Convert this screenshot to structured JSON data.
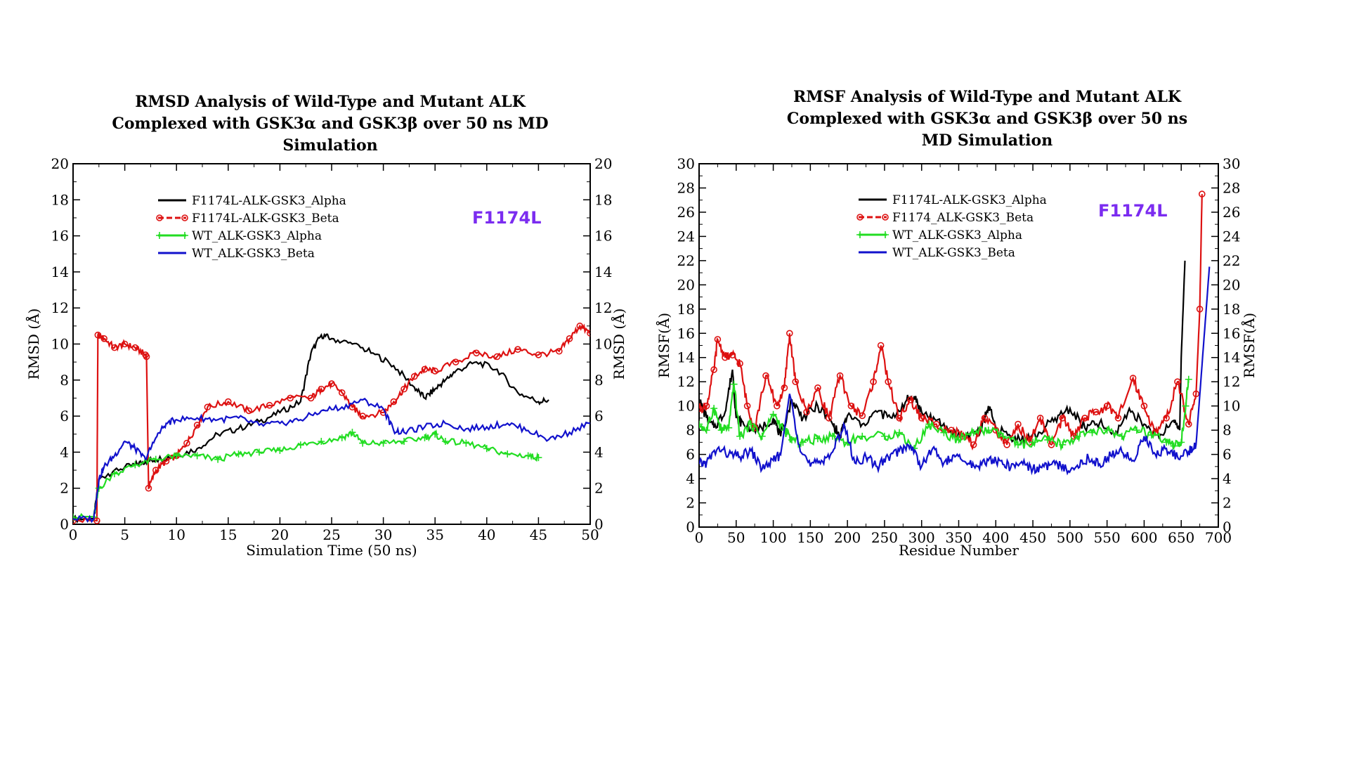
{
  "chart_data": [
    {
      "id": "rmsd",
      "type": "line",
      "title": "RMSD Analysis of Wild-Type and Mutant ALK Complexed with GSK3α and GSK3β over 50 ns MD Simulation",
      "title_lines": [
        "RMSD Analysis of Wild-Type and Mutant ALK",
        "Complexed with GSK3α and GSK3β over 50 ns MD",
        "Simulation"
      ],
      "xlabel": "Simulation Time (50 ns)",
      "ylabel": "RMSD (Å)",
      "ylabel_right": "RMSD (Å)",
      "xlim": [
        0,
        50
      ],
      "ylim": [
        0,
        20
      ],
      "xticks": [
        0,
        5,
        10,
        15,
        20,
        25,
        30,
        35,
        40,
        45,
        50
      ],
      "yticks": [
        0,
        2,
        4,
        6,
        8,
        10,
        12,
        14,
        16,
        18,
        20
      ],
      "grid": false,
      "legend_position": "top-left",
      "annotation": "F1174L",
      "annotation_color": "#7b2cf0",
      "series": [
        {
          "name": "F1174L-ALK-GSK3_Alpha",
          "color": "#000000",
          "marker": "none",
          "x": [
            0,
            2,
            2.5,
            4,
            6,
            7,
            8,
            10,
            12,
            14,
            16,
            18,
            20,
            22,
            23,
            24,
            25,
            27,
            29,
            31,
            33,
            34,
            35,
            36,
            37,
            39,
            41,
            43,
            45,
            46
          ],
          "y": [
            0.3,
            0.3,
            2.5,
            3.0,
            3.3,
            3.5,
            3.6,
            3.8,
            4.2,
            5.0,
            5.3,
            5.7,
            6.2,
            6.8,
            9.5,
            10.5,
            10.3,
            10.0,
            9.5,
            8.8,
            7.6,
            7.0,
            7.5,
            8.0,
            8.5,
            9.0,
            8.6,
            7.3,
            6.8,
            6.9
          ]
        },
        {
          "name": "F1174L-ALK-GSK3_Beta",
          "color": "#dd1111",
          "marker": "circle",
          "x": [
            0,
            2.3,
            2.4,
            3,
            4,
            5,
            6,
            7,
            7.1,
            7.3,
            8,
            9,
            10,
            11,
            12,
            13,
            15,
            17,
            19,
            21,
            23,
            24,
            25,
            26,
            27,
            28,
            30,
            31,
            32,
            33,
            34,
            35,
            37,
            39,
            41,
            43,
            45,
            47,
            48,
            49,
            50
          ],
          "y": [
            0.2,
            0.2,
            10.5,
            10.3,
            9.8,
            10.0,
            9.8,
            9.4,
            9.3,
            2.0,
            3.0,
            3.5,
            3.8,
            4.5,
            5.5,
            6.5,
            6.8,
            6.3,
            6.6,
            7.0,
            7.0,
            7.5,
            7.8,
            7.3,
            6.5,
            6.0,
            6.2,
            6.8,
            7.5,
            8.2,
            8.6,
            8.5,
            9.0,
            9.5,
            9.3,
            9.7,
            9.4,
            9.6,
            10.3,
            11.0,
            10.6
          ]
        },
        {
          "name": "WT_ALK-GSK3_Alpha",
          "color": "#22dd22",
          "marker": "plus",
          "x": [
            0,
            2,
            2.5,
            4,
            6,
            8,
            10,
            12,
            14,
            16,
            18,
            20,
            22,
            24,
            26,
            27,
            28,
            30,
            32,
            34,
            35,
            36,
            38,
            40,
            42,
            44,
            45
          ],
          "y": [
            0.4,
            0.4,
            2.0,
            2.8,
            3.3,
            3.6,
            3.8,
            3.8,
            3.6,
            3.9,
            4.0,
            4.1,
            4.4,
            4.6,
            4.8,
            5.1,
            4.5,
            4.5,
            4.6,
            4.8,
            5.0,
            4.6,
            4.5,
            4.2,
            3.9,
            3.8,
            3.7
          ]
        },
        {
          "name": "WT_ALK-GSK3_Beta",
          "color": "#1111cc",
          "marker": "none",
          "x": [
            0,
            2,
            2.5,
            3,
            4,
            5,
            6,
            7,
            8,
            9,
            10,
            12,
            14,
            16,
            18,
            20,
            22,
            24,
            26,
            28,
            30,
            31,
            32,
            34,
            36,
            38,
            40,
            42,
            44,
            46,
            48,
            50
          ],
          "y": [
            0.3,
            0.3,
            2.5,
            3.2,
            3.8,
            4.6,
            4.2,
            3.6,
            4.8,
            5.6,
            5.8,
            5.9,
            5.8,
            5.9,
            5.5,
            5.6,
            5.8,
            6.3,
            6.5,
            6.9,
            6.4,
            5.2,
            5.1,
            5.4,
            5.6,
            5.3,
            5.4,
            5.6,
            5.2,
            4.7,
            5.1,
            5.6
          ]
        }
      ]
    },
    {
      "id": "rmsf",
      "type": "line",
      "title": "RMSF Analysis of Wild-Type and Mutant ALK Complexed with GSK3α and GSK3β over 50 ns MD Simulation",
      "title_lines": [
        "RMSF Analysis of Wild-Type and  Mutant ALK",
        "Complexed with GSK3α and GSK3β over 50 ns",
        "MD Simulation"
      ],
      "xlabel": "Residue Number",
      "ylabel": "RMSF(Å)",
      "ylabel_right": "RMSF(Å)",
      "xlim": [
        0,
        700
      ],
      "ylim": [
        0,
        30
      ],
      "xticks": [
        0,
        50,
        100,
        150,
        200,
        250,
        300,
        350,
        400,
        450,
        500,
        550,
        600,
        650,
        700
      ],
      "yticks": [
        0,
        2,
        4,
        6,
        8,
        10,
        12,
        14,
        16,
        18,
        20,
        22,
        24,
        26,
        28,
        30
      ],
      "grid": false,
      "legend_position": "top-left",
      "annotation": "F1174L",
      "annotation_color": "#7b2cf0",
      "series": [
        {
          "name": "F1174L-ALK-GSK3_Alpha",
          "color": "#000000",
          "marker": "none",
          "x": [
            0,
            10,
            20,
            35,
            45,
            50,
            60,
            80,
            100,
            110,
            125,
            140,
            160,
            180,
            190,
            200,
            220,
            240,
            260,
            280,
            290,
            300,
            320,
            340,
            360,
            380,
            390,
            400,
            420,
            440,
            460,
            480,
            500,
            520,
            540,
            560,
            580,
            600,
            620,
            640,
            648,
            650,
            655
          ],
          "y": [
            10.5,
            9.0,
            8.2,
            9.5,
            13.0,
            9.0,
            8.5,
            8.0,
            9.0,
            7.5,
            10.5,
            9.0,
            10.0,
            8.5,
            7.5,
            9.2,
            8.5,
            9.5,
            9.0,
            10.5,
            10.8,
            9.5,
            8.8,
            7.8,
            7.5,
            8.0,
            10.0,
            8.2,
            7.5,
            7.2,
            7.8,
            9.0,
            9.8,
            8.2,
            8.6,
            7.5,
            9.8,
            8.5,
            7.4,
            8.8,
            8.0,
            14.0,
            22.0
          ]
        },
        {
          "name": "F1174_ALK-GSK3_Beta",
          "color": "#dd1111",
          "marker": "circle",
          "x": [
            0,
            10,
            20,
            25,
            35,
            45,
            55,
            65,
            75,
            90,
            105,
            115,
            122,
            130,
            145,
            160,
            175,
            190,
            205,
            220,
            235,
            245,
            255,
            270,
            285,
            300,
            320,
            340,
            355,
            370,
            385,
            400,
            415,
            430,
            445,
            460,
            475,
            490,
            505,
            520,
            535,
            550,
            565,
            585,
            600,
            615,
            630,
            645,
            660,
            670,
            675,
            678
          ],
          "y": [
            9.8,
            10.0,
            13.0,
            15.5,
            14.0,
            14.2,
            13.5,
            10.0,
            8.2,
            12.5,
            10.0,
            11.5,
            16.0,
            12.0,
            9.5,
            11.5,
            9.0,
            12.5,
            10.0,
            9.2,
            12.0,
            15.0,
            12.0,
            9.0,
            10.5,
            9.0,
            8.5,
            8.0,
            7.5,
            6.8,
            9.0,
            8.0,
            6.8,
            8.5,
            7.0,
            9.0,
            6.8,
            9.0,
            7.5,
            9.0,
            9.5,
            10.0,
            9.0,
            12.3,
            10.0,
            7.8,
            9.0,
            12.0,
            8.5,
            11.0,
            18.0,
            27.5
          ]
        },
        {
          "name": "WT_ALK-GSK3_Alpha",
          "color": "#22dd22",
          "marker": "plus",
          "x": [
            0,
            10,
            20,
            30,
            40,
            47,
            55,
            70,
            85,
            100,
            115,
            125,
            140,
            160,
            180,
            200,
            220,
            250,
            270,
            290,
            310,
            330,
            350,
            370,
            390,
            410,
            430,
            450,
            470,
            490,
            510,
            530,
            550,
            570,
            590,
            610,
            630,
            640,
            650,
            656,
            660
          ],
          "y": [
            8.5,
            8.0,
            9.8,
            8.0,
            8.2,
            11.8,
            7.5,
            8.5,
            7.5,
            9.3,
            8.0,
            7.2,
            7.0,
            7.3,
            7.5,
            7.0,
            7.5,
            7.5,
            7.8,
            6.5,
            8.5,
            7.8,
            7.2,
            7.8,
            8.0,
            7.5,
            6.8,
            7.0,
            7.2,
            6.8,
            7.5,
            7.8,
            8.0,
            7.5,
            8.0,
            7.6,
            7.0,
            6.7,
            7.0,
            10.0,
            12.2
          ]
        },
        {
          "name": "WT_ALK-GSK3_Beta",
          "color": "#1111cc",
          "marker": "none",
          "x": [
            0,
            10,
            25,
            40,
            55,
            70,
            85,
            100,
            110,
            122,
            135,
            150,
            165,
            180,
            195,
            210,
            225,
            240,
            255,
            270,
            285,
            300,
            315,
            330,
            345,
            360,
            375,
            390,
            405,
            420,
            435,
            450,
            465,
            480,
            495,
            510,
            525,
            540,
            555,
            570,
            585,
            600,
            615,
            630,
            645,
            660,
            670,
            680,
            688
          ],
          "y": [
            5.2,
            5.3,
            6.5,
            6.0,
            5.8,
            6.3,
            4.8,
            5.5,
            6.0,
            11.0,
            6.8,
            5.0,
            5.5,
            6.2,
            8.5,
            5.3,
            5.8,
            5.0,
            5.8,
            6.3,
            6.8,
            5.0,
            6.5,
            5.3,
            5.8,
            5.3,
            5.0,
            5.5,
            5.5,
            4.9,
            5.4,
            4.8,
            5.0,
            5.2,
            4.8,
            5.1,
            5.7,
            5.2,
            5.9,
            6.2,
            5.5,
            7.5,
            6.0,
            6.5,
            5.8,
            6.3,
            6.8,
            15.0,
            21.5
          ]
        }
      ]
    }
  ]
}
